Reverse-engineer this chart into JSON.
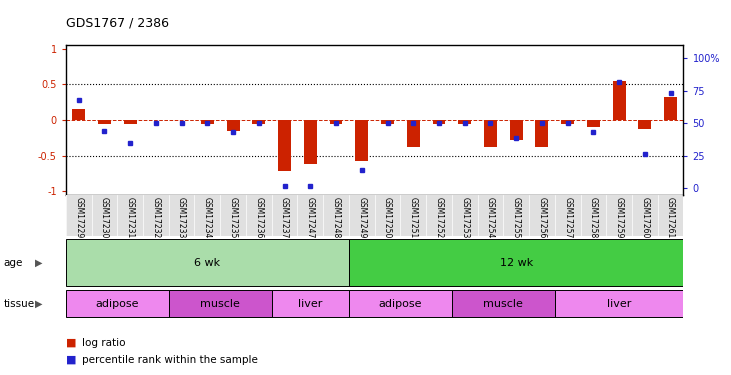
{
  "title": "GDS1767 / 2386",
  "samples": [
    "GSM17229",
    "GSM17230",
    "GSM17231",
    "GSM17232",
    "GSM17233",
    "GSM17234",
    "GSM17235",
    "GSM17236",
    "GSM17237",
    "GSM17247",
    "GSM17248",
    "GSM17249",
    "GSM17250",
    "GSM17251",
    "GSM17252",
    "GSM17253",
    "GSM17254",
    "GSM17255",
    "GSM17256",
    "GSM17257",
    "GSM17258",
    "GSM17259",
    "GSM17260",
    "GSM17261"
  ],
  "log_ratio": [
    0.15,
    -0.05,
    -0.05,
    0.0,
    0.0,
    -0.05,
    -0.15,
    -0.05,
    -0.72,
    -0.62,
    -0.05,
    -0.57,
    -0.05,
    -0.38,
    -0.05,
    -0.05,
    -0.38,
    -0.28,
    -0.38,
    -0.05,
    -0.1,
    0.55,
    -0.12,
    0.32
  ],
  "percentile_rank": [
    68,
    44,
    35,
    50,
    50,
    50,
    43,
    50,
    2,
    2,
    50,
    14,
    50,
    50,
    50,
    50,
    50,
    39,
    50,
    50,
    43,
    82,
    26,
    73
  ],
  "bar_color": "#cc2200",
  "dot_color": "#2222cc",
  "age_groups": [
    {
      "label": "6 wk",
      "start": 0,
      "end": 11,
      "color": "#aaeea a"
    },
    {
      "label": "12 wk",
      "start": 11,
      "end": 24,
      "color": "#44cc44"
    }
  ],
  "tissue_groups": [
    {
      "label": "adipose",
      "start": 0,
      "end": 4,
      "color": "#ee88ee"
    },
    {
      "label": "muscle",
      "start": 4,
      "end": 8,
      "color": "#cc55cc"
    },
    {
      "label": "liver",
      "start": 8,
      "end": 11,
      "color": "#ee88ee"
    },
    {
      "label": "adipose",
      "start": 11,
      "end": 15,
      "color": "#ee88ee"
    },
    {
      "label": "muscle",
      "start": 15,
      "end": 19,
      "color": "#cc55cc"
    },
    {
      "label": "liver",
      "start": 19,
      "end": 24,
      "color": "#ee88ee"
    }
  ],
  "ylim": [
    -1.05,
    1.05
  ],
  "yticks": [
    -1,
    -0.5,
    0,
    0.5,
    1
  ],
  "ytick_labels": [
    "-1",
    "-0.5",
    "0",
    "0.5",
    "1"
  ],
  "right_yticks": [
    0,
    25,
    50,
    75,
    100
  ],
  "right_ytick_labels": [
    "0",
    "25",
    "50",
    "75",
    "100%"
  ],
  "hlines": [
    0.5,
    -0.5
  ],
  "background_color": "#ffffff",
  "plot_bg_color": "#ffffff",
  "tick_bg_color": "#e0e0e0",
  "age_label": "age",
  "tissue_label": "tissue",
  "legend_log_ratio": "log ratio",
  "legend_percentile": "percentile rank within the sample"
}
